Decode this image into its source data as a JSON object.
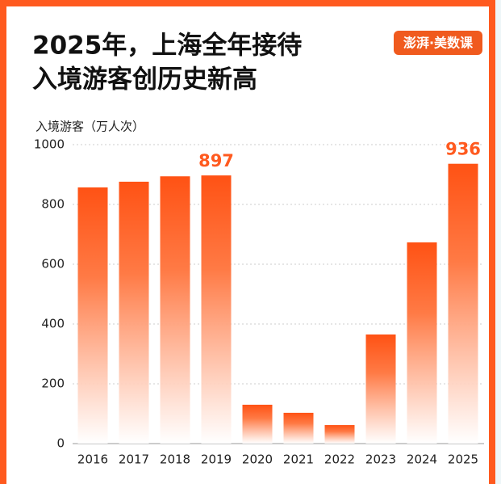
{
  "chart_data": {
    "type": "bar",
    "title": [
      "2025年，上海全年接待",
      "入境游客创历史新高"
    ],
    "logo": "澎湃·美数课",
    "y_label": "入境游客（万人次）",
    "categories": [
      "2016",
      "2017",
      "2018",
      "2019",
      "2020",
      "2021",
      "2022",
      "2023",
      "2024",
      "2025"
    ],
    "values": [
      857,
      876,
      894,
      897,
      130,
      103,
      62,
      365,
      673,
      936
    ],
    "value_labels": [
      null,
      null,
      null,
      "897",
      null,
      null,
      null,
      null,
      null,
      "936"
    ],
    "color": "#ff5a1f",
    "ylim": [
      0,
      1000
    ],
    "yticks": [
      0,
      200,
      400,
      600,
      800,
      1000
    ],
    "grid": true
  }
}
